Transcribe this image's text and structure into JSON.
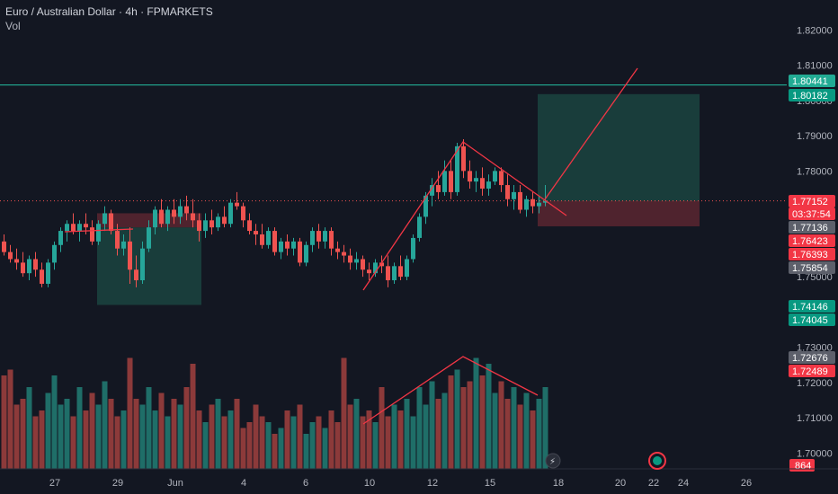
{
  "header": {
    "symbol_line": "Euro / Australian Dollar · 4h · FPMARKETS",
    "volume_label": "Vol"
  },
  "colors": {
    "background": "#131722",
    "up": "#26a69a",
    "down": "#ef5350",
    "up_volume": "#1f6e68",
    "down_volume": "#8c3a3a",
    "drawing": "#f23645",
    "horizontal_line": "#22ab94"
  },
  "chart_data": {
    "type": "candlestick",
    "title": "Euro / Australian Dollar · 4h · FPMARKETS",
    "price_axis": {
      "range": [
        1.6955,
        1.8285
      ],
      "ticks": [
        "1.82000",
        "1.81000",
        "1.80000",
        "1.79000",
        "1.78000",
        "1.77000",
        "1.76000",
        "1.75000",
        "1.73000",
        "1.72000",
        "1.71000",
        "1.70000"
      ]
    },
    "time_axis": {
      "ticks": [
        "27",
        "29",
        "Jun",
        "4",
        "6",
        "10",
        "12",
        "15",
        "18",
        "20",
        "22",
        "24",
        "26"
      ]
    },
    "price_labels": [
      {
        "text": "1.80441",
        "kind": "line"
      },
      {
        "text": "1.80182",
        "kind": "target"
      },
      {
        "text": "1.77152",
        "kind": "last"
      },
      {
        "text": "03:37:54",
        "kind": "countdown"
      },
      {
        "text": "1.77136",
        "kind": "gray"
      },
      {
        "text": "1.76423",
        "kind": "down"
      },
      {
        "text": "1.76393",
        "kind": "down"
      },
      {
        "text": "1.75854",
        "kind": "gray"
      },
      {
        "text": "1.74146",
        "kind": "up"
      },
      {
        "text": "1.74045",
        "kind": "up"
      },
      {
        "text": "1.72676",
        "kind": "gray"
      },
      {
        "text": "1.72489",
        "kind": "down"
      },
      {
        "text": "864",
        "kind": "volume"
      }
    ],
    "horizontal_line": 1.80441,
    "candles": [
      [
        1.76,
        1.762,
        1.756,
        1.757
      ],
      [
        1.757,
        1.759,
        1.754,
        1.755
      ],
      [
        1.755,
        1.758,
        1.752,
        1.754
      ],
      [
        1.754,
        1.757,
        1.75,
        1.751
      ],
      [
        1.751,
        1.756,
        1.749,
        1.755
      ],
      [
        1.755,
        1.757,
        1.75,
        1.752
      ],
      [
        1.752,
        1.754,
        1.747,
        1.748
      ],
      [
        1.748,
        1.755,
        1.747,
        1.754
      ],
      [
        1.754,
        1.76,
        1.752,
        1.759
      ],
      [
        1.759,
        1.764,
        1.757,
        1.763
      ],
      [
        1.763,
        1.766,
        1.76,
        1.765
      ],
      [
        1.765,
        1.768,
        1.762,
        1.763
      ],
      [
        1.763,
        1.766,
        1.76,
        1.765
      ],
      [
        1.765,
        1.768,
        1.762,
        1.764
      ],
      [
        1.764,
        1.766,
        1.759,
        1.76
      ],
      [
        1.76,
        1.766,
        1.759,
        1.765
      ],
      [
        1.765,
        1.77,
        1.763,
        1.768
      ],
      [
        1.768,
        1.769,
        1.762,
        1.763
      ],
      [
        1.763,
        1.765,
        1.756,
        1.758
      ],
      [
        1.758,
        1.762,
        1.756,
        1.76
      ],
      [
        1.76,
        1.764,
        1.748,
        1.752
      ],
      [
        1.752,
        1.756,
        1.747,
        1.749
      ],
      [
        1.749,
        1.76,
        1.748,
        1.758
      ],
      [
        1.758,
        1.766,
        1.757,
        1.764
      ],
      [
        1.764,
        1.77,
        1.762,
        1.769
      ],
      [
        1.769,
        1.772,
        1.764,
        1.765
      ],
      [
        1.765,
        1.77,
        1.763,
        1.769
      ],
      [
        1.769,
        1.772,
        1.765,
        1.767
      ],
      [
        1.767,
        1.772,
        1.765,
        1.77
      ],
      [
        1.77,
        1.773,
        1.766,
        1.768
      ],
      [
        1.768,
        1.772,
        1.764,
        1.766
      ],
      [
        1.766,
        1.768,
        1.76,
        1.763
      ],
      [
        1.763,
        1.768,
        1.761,
        1.766
      ],
      [
        1.766,
        1.769,
        1.762,
        1.764
      ],
      [
        1.764,
        1.768,
        1.763,
        1.767
      ],
      [
        1.767,
        1.77,
        1.764,
        1.765
      ],
      [
        1.765,
        1.772,
        1.764,
        1.771
      ],
      [
        1.771,
        1.774,
        1.769,
        1.77
      ],
      [
        1.77,
        1.771,
        1.764,
        1.766
      ],
      [
        1.766,
        1.768,
        1.762,
        1.763
      ],
      [
        1.763,
        1.765,
        1.759,
        1.762
      ],
      [
        1.762,
        1.765,
        1.758,
        1.759
      ],
      [
        1.759,
        1.764,
        1.758,
        1.763
      ],
      [
        1.763,
        1.764,
        1.756,
        1.757
      ],
      [
        1.757,
        1.761,
        1.755,
        1.76
      ],
      [
        1.76,
        1.762,
        1.756,
        1.758
      ],
      [
        1.758,
        1.761,
        1.756,
        1.76
      ],
      [
        1.76,
        1.761,
        1.753,
        1.754
      ],
      [
        1.754,
        1.76,
        1.753,
        1.759
      ],
      [
        1.759,
        1.764,
        1.757,
        1.763
      ],
      [
        1.763,
        1.765,
        1.758,
        1.76
      ],
      [
        1.76,
        1.764,
        1.758,
        1.763
      ],
      [
        1.763,
        1.764,
        1.756,
        1.758
      ],
      [
        1.758,
        1.76,
        1.755,
        1.757
      ],
      [
        1.757,
        1.759,
        1.754,
        1.756
      ],
      [
        1.756,
        1.758,
        1.752,
        1.754
      ],
      [
        1.754,
        1.757,
        1.752,
        1.755
      ],
      [
        1.755,
        1.756,
        1.75,
        1.752
      ],
      [
        1.752,
        1.754,
        1.749,
        1.751
      ],
      [
        1.751,
        1.755,
        1.75,
        1.754
      ],
      [
        1.754,
        1.756,
        1.751,
        1.753
      ],
      [
        1.753,
        1.756,
        1.747,
        1.749
      ],
      [
        1.749,
        1.754,
        1.748,
        1.753
      ],
      [
        1.753,
        1.756,
        1.749,
        1.75
      ],
      [
        1.75,
        1.756,
        1.749,
        1.755
      ],
      [
        1.755,
        1.762,
        1.754,
        1.761
      ],
      [
        1.761,
        1.768,
        1.76,
        1.767
      ],
      [
        1.767,
        1.774,
        1.765,
        1.773
      ],
      [
        1.773,
        1.778,
        1.77,
        1.776
      ],
      [
        1.776,
        1.78,
        1.772,
        1.774
      ],
      [
        1.774,
        1.783,
        1.773,
        1.78
      ],
      [
        1.78,
        1.783,
        1.772,
        1.774
      ],
      [
        1.774,
        1.788,
        1.773,
        1.787
      ],
      [
        1.787,
        1.789,
        1.778,
        1.78
      ],
      [
        1.78,
        1.783,
        1.775,
        1.777
      ],
      [
        1.777,
        1.78,
        1.774,
        1.778
      ],
      [
        1.778,
        1.781,
        1.773,
        1.775
      ],
      [
        1.775,
        1.779,
        1.773,
        1.777
      ],
      [
        1.777,
        1.781,
        1.776,
        1.78
      ],
      [
        1.78,
        1.781,
        1.774,
        1.776
      ],
      [
        1.776,
        1.779,
        1.77,
        1.772
      ],
      [
        1.772,
        1.776,
        1.769,
        1.774
      ],
      [
        1.774,
        1.776,
        1.768,
        1.769
      ],
      [
        1.769,
        1.773,
        1.767,
        1.772
      ],
      [
        1.772,
        1.774,
        1.768,
        1.77
      ],
      [
        1.77,
        1.773,
        1.768,
        1.771
      ],
      [
        1.771,
        1.776,
        1.77,
        1.7715
      ]
    ],
    "volumes": [
      0.8,
      0.85,
      0.55,
      0.6,
      0.7,
      0.45,
      0.5,
      0.65,
      0.8,
      0.55,
      0.6,
      0.45,
      0.7,
      0.5,
      0.65,
      0.55,
      0.75,
      0.6,
      0.45,
      0.5,
      0.95,
      0.6,
      0.55,
      0.7,
      0.5,
      0.65,
      0.45,
      0.6,
      0.55,
      0.7,
      0.9,
      0.5,
      0.4,
      0.55,
      0.6,
      0.45,
      0.5,
      0.6,
      0.35,
      0.4,
      0.55,
      0.45,
      0.4,
      0.3,
      0.35,
      0.5,
      0.45,
      0.55,
      0.3,
      0.4,
      0.45,
      0.35,
      0.5,
      0.4,
      0.95,
      0.55,
      0.6,
      0.45,
      0.5,
      0.4,
      0.7,
      0.45,
      0.55,
      0.5,
      0.6,
      0.45,
      0.7,
      0.55,
      0.75,
      0.6,
      0.65,
      0.8,
      0.85,
      0.7,
      0.75,
      0.95,
      0.8,
      0.9,
      0.65,
      0.75,
      0.6,
      0.7,
      0.55,
      0.65,
      0.5,
      0.6,
      0.7
    ]
  }
}
